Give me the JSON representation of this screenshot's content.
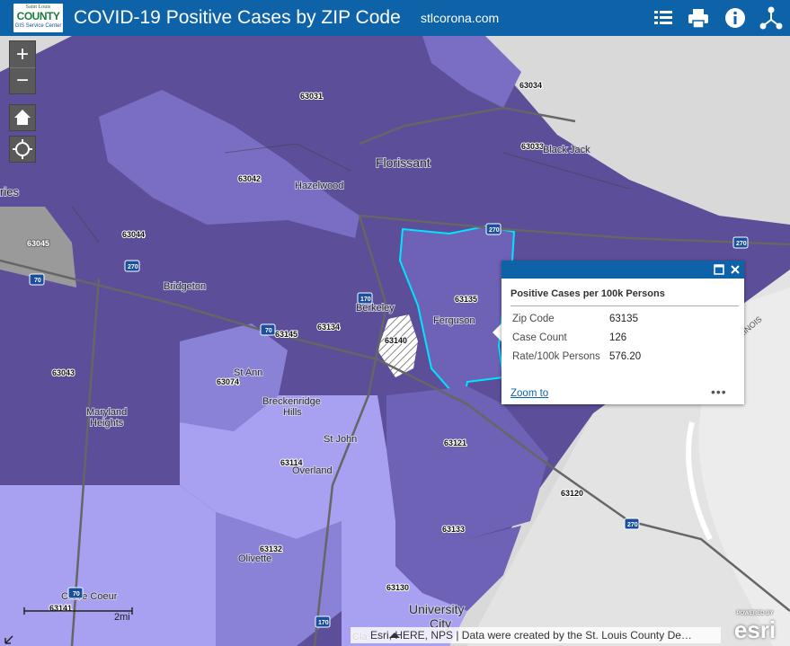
{
  "header": {
    "logo_line1": "Saint Louis",
    "logo_line2": "COUNTY",
    "logo_line3": "GIS Service Center",
    "title": "COVID-19 Positive Cases by ZIP Code",
    "site": "stlcorona.com",
    "icons": [
      "legend-list-icon",
      "print-icon",
      "info-icon",
      "share-icon"
    ]
  },
  "controls": {
    "zoom_in": "+",
    "zoom_out": "−",
    "home": "home-icon",
    "locate": "locate-icon"
  },
  "map_labels": {
    "zips": [
      "63031",
      "63034",
      "63033",
      "63042",
      "63045",
      "63044",
      "63135",
      "63134",
      "63140",
      "63145",
      "63043",
      "63074",
      "63114",
      "63121",
      "63120",
      "63133",
      "63132",
      "63130",
      "63141"
    ],
    "places": [
      "Florissant",
      "Black Jack",
      "Hazelwood",
      "Bridgeton",
      "Berkeley",
      "Ferguson",
      "St Ann",
      "Breckenridge Hills",
      "St John",
      "Overland",
      "Maryland Heights",
      "Olivette",
      "Creve Coeur",
      "University City",
      "Clayton",
      "ries"
    ],
    "highways": [
      "270",
      "270",
      "270",
      "270",
      "70",
      "70",
      "170",
      "170",
      "70"
    ],
    "river_label": "ILLINOIS"
  },
  "popup": {
    "title": "Positive Cases per 100k Persons",
    "rows": [
      {
        "label": "Zip Code",
        "value": "63135"
      },
      {
        "label": "Case Count",
        "value": "126"
      },
      {
        "label": "Rate/100k Persons",
        "value": "576.20"
      }
    ],
    "zoom_link": "Zoom to",
    "more": "•••"
  },
  "scale": {
    "label": "2mi"
  },
  "attribution": "Esri, HERE, NPS | Data were created by the St. Louis County De…",
  "attribution_prefix": "Cla",
  "esri": {
    "powered": "POWERED BY",
    "brand": "esri"
  },
  "colors": {
    "header": "#0e63a8",
    "dark_purple": "#5a4a98",
    "mid_purple": "#6c63b4",
    "light_purple": "#8a82d6",
    "lightest_purple": "#a8a0f0",
    "selected_outline": "#00e5ff",
    "no_data": "#999999"
  }
}
